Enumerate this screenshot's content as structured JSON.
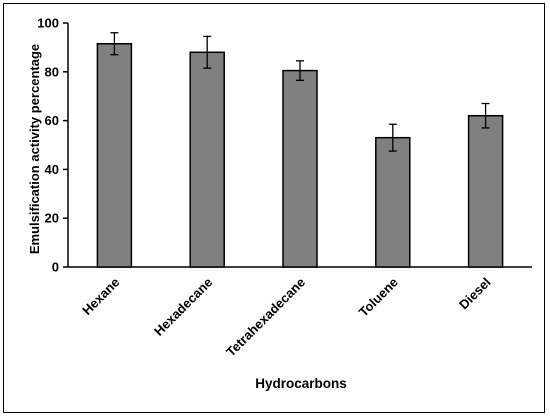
{
  "chart_data": {
    "type": "bar",
    "categories": [
      "Hexane",
      "Hexadecane",
      "Tetrahexadecane",
      "Toluene",
      "Diesel"
    ],
    "values": [
      91.5,
      88,
      80.5,
      53,
      62
    ],
    "errors": [
      4.5,
      6.5,
      4,
      5.5,
      5
    ],
    "xlabel": "Hydrocarbons",
    "ylabel": "Emulsification activity percentage",
    "ylim": [
      0,
      100
    ],
    "yticks": [
      0,
      20,
      40,
      60,
      80,
      100
    ],
    "ytick_labels": [
      "0",
      "20",
      "40",
      "60",
      "80",
      "100"
    ],
    "grid": false,
    "legend": "none",
    "bar_color": "#808080",
    "edge_color": "#000000"
  }
}
